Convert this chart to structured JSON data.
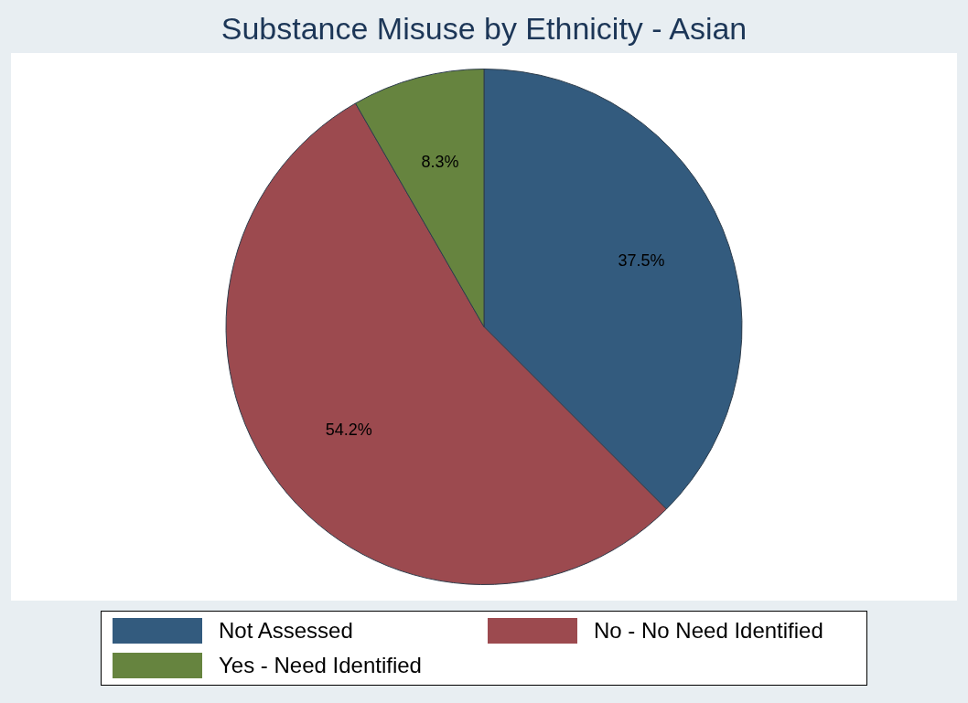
{
  "chart_data": {
    "type": "pie",
    "title": "Substance Misuse by Ethnicity - Asian",
    "categories": [
      "Not Assessed",
      "No - No Need Identified",
      "Yes - Need Identified"
    ],
    "values": [
      37.5,
      54.2,
      8.3
    ],
    "colors": [
      "#335b7e",
      "#9c4a4f",
      "#66843f"
    ],
    "value_labels": [
      "37.5%",
      "54.2%",
      "8.3%"
    ],
    "legend": "bottom"
  }
}
